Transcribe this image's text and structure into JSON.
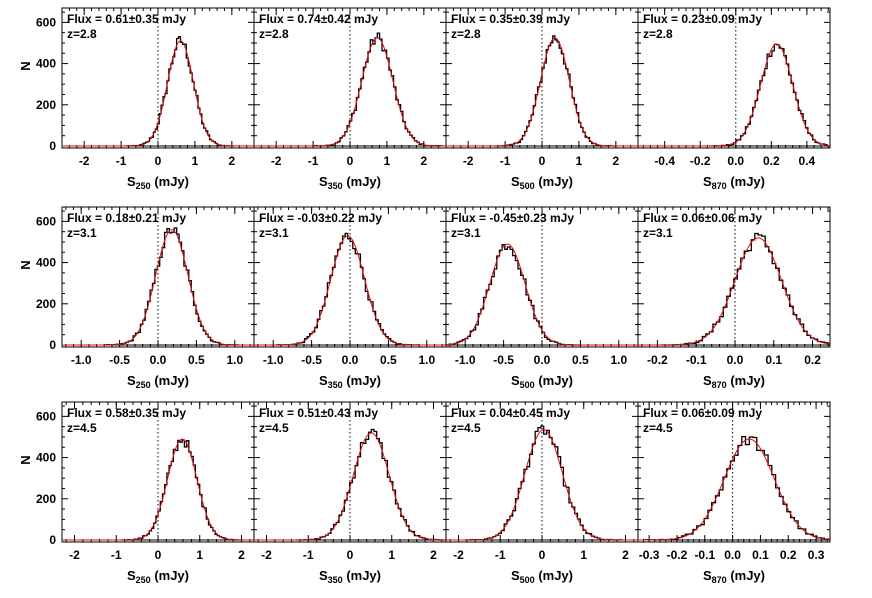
{
  "chart_data": {
    "type": "histogram-grid",
    "ylabel": "N",
    "y_ticks": [
      "0",
      "200",
      "400",
      "600"
    ],
    "ylim": [
      0,
      660
    ],
    "model_color": "#e01010",
    "hist_color": "#000000",
    "zero_line": "dotted",
    "rows": [
      {
        "redshift_label": "z=2.8",
        "panels": [
          {
            "band": "250",
            "xlabel_main": "S",
            "xlabel_unit": "(mJy)",
            "flux_label": "Flux = 0.61±0.35 mJy",
            "mean": 0.61,
            "sigma": 0.35,
            "peak": 510,
            "xlim": [
              -2.6,
              2.6
            ],
            "x_ticks": [
              "-2",
              "-1",
              "0",
              "1",
              "2"
            ],
            "x_tick_values": [
              -2,
              -1,
              0,
              1,
              2
            ]
          },
          {
            "band": "350",
            "xlabel_main": "S",
            "xlabel_unit": "(mJy)",
            "flux_label": "Flux = 0.74±0.42 mJy",
            "mean": 0.74,
            "sigma": 0.42,
            "peak": 525,
            "xlim": [
              -2.6,
              2.6
            ],
            "x_ticks": [
              "-2",
              "-1",
              "0",
              "1",
              "2"
            ],
            "x_tick_values": [
              -2,
              -1,
              0,
              1,
              2
            ]
          },
          {
            "band": "500",
            "xlabel_main": "S",
            "xlabel_unit": "(mJy)",
            "flux_label": "Flux = 0.35±0.39 mJy",
            "mean": 0.35,
            "sigma": 0.39,
            "peak": 525,
            "xlim": [
              -2.6,
              2.6
            ],
            "x_ticks": [
              "-2",
              "-1",
              "0",
              "1",
              "2"
            ],
            "x_tick_values": [
              -2,
              -1,
              0,
              1,
              2
            ]
          },
          {
            "band": "870",
            "xlabel_main": "S",
            "xlabel_unit": "(mJy)",
            "flux_label": "Flux = 0.23±0.09 mJy",
            "mean": 0.23,
            "sigma": 0.09,
            "peak": 495,
            "xlim": [
              -0.55,
              0.53
            ],
            "x_ticks": [
              "-0.4",
              "-0.2",
              "0.0",
              "0.2",
              "0.4"
            ],
            "x_tick_values": [
              -0.4,
              -0.2,
              0.0,
              0.2,
              0.4
            ]
          }
        ]
      },
      {
        "redshift_label": "z=3.1",
        "panels": [
          {
            "band": "250",
            "xlabel_main": "S",
            "xlabel_unit": "(mJy)",
            "flux_label": "Flux = 0.18±0.21 mJy",
            "mean": 0.18,
            "sigma": 0.21,
            "peak": 560,
            "xlim": [
              -1.25,
              1.25
            ],
            "x_ticks": [
              "-1.0",
              "-0.5",
              "0.0",
              "0.5",
              "1.0"
            ],
            "x_tick_values": [
              -1.0,
              -0.5,
              0.0,
              0.5,
              1.0
            ]
          },
          {
            "band": "350",
            "xlabel_main": "S",
            "xlabel_unit": "(mJy)",
            "flux_label": "Flux = -0.03±0.22 mJy",
            "mean": -0.03,
            "sigma": 0.22,
            "peak": 530,
            "xlim": [
              -1.25,
              1.25
            ],
            "x_ticks": [
              "-1.0",
              "-0.5",
              "0.0",
              "0.5",
              "1.0"
            ],
            "x_tick_values": [
              -1.0,
              -0.5,
              0.0,
              0.5,
              1.0
            ]
          },
          {
            "band": "500",
            "xlabel_main": "S",
            "xlabel_unit": "(mJy)",
            "flux_label": "Flux = -0.45±0.23 mJy",
            "mean": -0.45,
            "sigma": 0.23,
            "peak": 490,
            "xlim": [
              -1.25,
              1.25
            ],
            "x_ticks": [
              "-1.0",
              "-0.5",
              "0.0",
              "0.5",
              "1.0"
            ],
            "x_tick_values": [
              -1.0,
              -0.5,
              0.0,
              0.5,
              1.0
            ]
          },
          {
            "band": "870",
            "xlabel_main": "S",
            "xlabel_unit": "(mJy)",
            "flux_label": "Flux = 0.06±0.06 mJy",
            "mean": 0.06,
            "sigma": 0.06,
            "peak": 520,
            "xlim": [
              -0.25,
              0.245
            ],
            "x_ticks": [
              "-0.2",
              "-0.1",
              "0.0",
              "0.1",
              "0.2"
            ],
            "x_tick_values": [
              -0.2,
              -0.1,
              0.0,
              0.1,
              0.2
            ]
          }
        ]
      },
      {
        "redshift_label": "z=4.5",
        "panels": [
          {
            "band": "250",
            "xlabel_main": "S",
            "xlabel_unit": "(mJy)",
            "flux_label": "Flux = 0.58±0.35 mJy",
            "mean": 0.58,
            "sigma": 0.35,
            "peak": 490,
            "xlim": [
              -2.3,
              2.3
            ],
            "x_ticks": [
              "-2",
              "-1",
              "0",
              "1",
              "2"
            ],
            "x_tick_values": [
              -2,
              -1,
              0,
              1,
              2
            ]
          },
          {
            "band": "350",
            "xlabel_main": "S",
            "xlabel_unit": "(mJy)",
            "flux_label": "Flux = 0.51±0.43 mJy",
            "mean": 0.51,
            "sigma": 0.43,
            "peak": 520,
            "xlim": [
              -2.3,
              2.3
            ],
            "x_ticks": [
              "-2",
              "-1",
              "0",
              "1",
              "2"
            ],
            "x_tick_values": [
              -2,
              -1,
              0,
              1,
              2
            ]
          },
          {
            "band": "500",
            "xlabel_main": "S",
            "xlabel_unit": "(mJy)",
            "flux_label": "Flux = 0.04±0.45 mJy",
            "mean": 0.04,
            "sigma": 0.45,
            "peak": 535,
            "xlim": [
              -2.3,
              2.3
            ],
            "x_ticks": [
              "-2",
              "-1",
              "0",
              "1",
              "2"
            ],
            "x_tick_values": [
              -2,
              -1,
              0,
              1,
              2
            ]
          },
          {
            "band": "870",
            "xlabel_main": "S",
            "xlabel_unit": "(mJy)",
            "flux_label": "Flux = 0.06±0.09 mJy",
            "mean": 0.06,
            "sigma": 0.09,
            "peak": 490,
            "xlim": [
              -0.34,
              0.35
            ],
            "x_ticks": [
              "-0.3",
              "-0.2",
              "-0.1",
              "0.0",
              "0.1",
              "0.2",
              "0.3"
            ],
            "x_tick_values": [
              -0.3,
              -0.2,
              -0.1,
              0.0,
              0.1,
              0.2,
              0.3
            ]
          }
        ]
      }
    ]
  }
}
